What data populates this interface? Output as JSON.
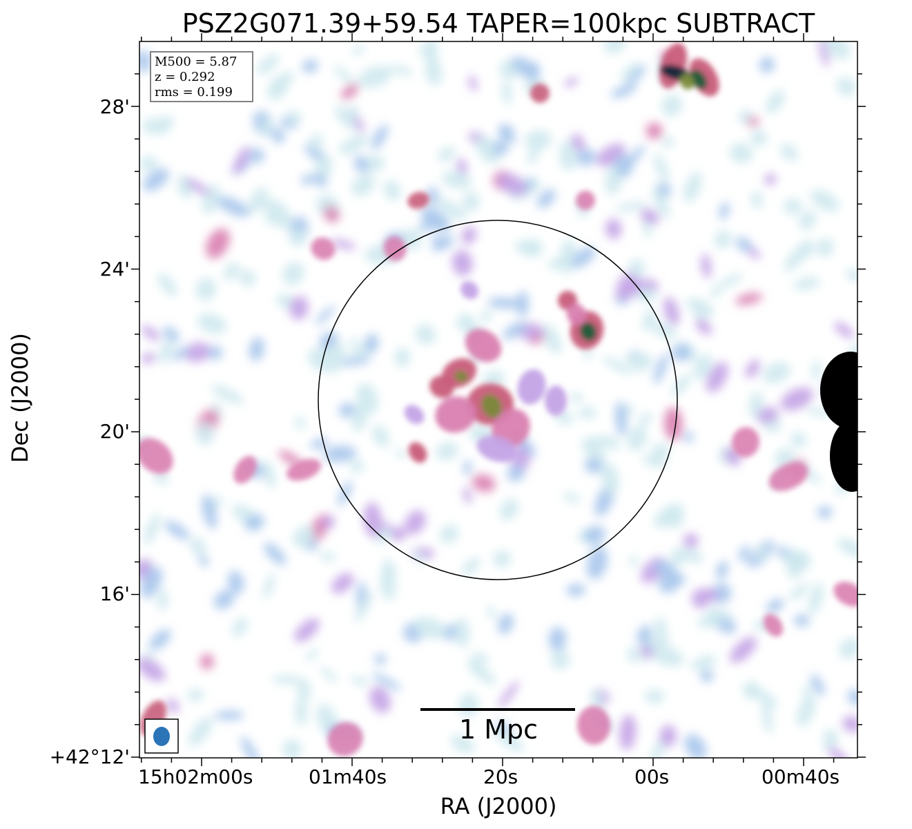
{
  "figure": {
    "title": "PSZ2G071.39+59.54 TAPER=100kpc SUBTRACT",
    "xlabel": "RA (J2000)",
    "ylabel": "Dec (J2000)",
    "y_ticks": [
      "28'",
      "24'",
      "20'",
      "16'",
      "+42°12'"
    ],
    "x_ticks": [
      "15h02m00s",
      "01m40s",
      "20s",
      "00s",
      "00m40s"
    ],
    "info": {
      "m500": "M500 = 5.87",
      "z": "z = 0.292",
      "rms": "rms = 0.199"
    },
    "scalebar_label": "1 Mpc",
    "colors": {
      "faint": "#cfe9ee",
      "light_blue": "#a9c6ec",
      "lavender": "#c3a3e6",
      "pink": "#d97fb0",
      "red": "#c85c7a",
      "olive": "#7a8a3a",
      "dark_green": "#1f5c3a",
      "navy": "#0c2a3a",
      "beam": "#2a74b7",
      "circle": "#000000"
    }
  }
}
